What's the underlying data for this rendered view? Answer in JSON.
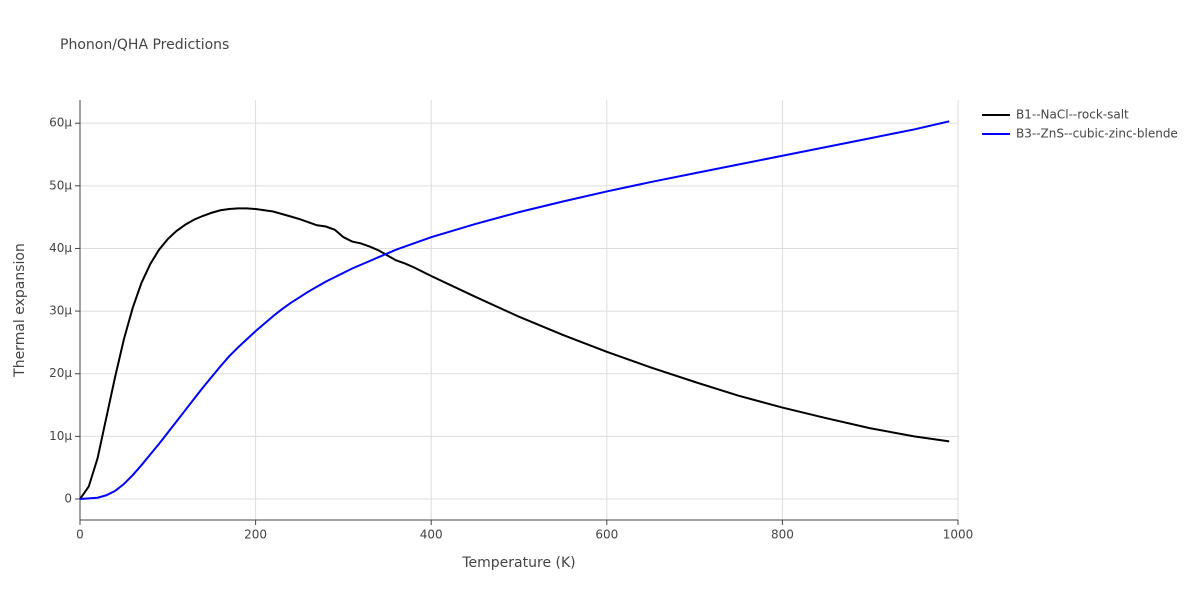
{
  "chart_data": {
    "type": "line",
    "title": "Phonon/QHA Predictions",
    "xlabel": "Temperature (K)",
    "ylabel": "Thermal expansion",
    "x": [
      0,
      10,
      20,
      30,
      40,
      50,
      60,
      70,
      80,
      90,
      100,
      110,
      120,
      130,
      140,
      150,
      160,
      170,
      180,
      190,
      200,
      210,
      220,
      230,
      240,
      250,
      260,
      270,
      280,
      290,
      300,
      310,
      320,
      330,
      340,
      350,
      360,
      370,
      380,
      400,
      450,
      500,
      550,
      600,
      650,
      700,
      750,
      800,
      850,
      900,
      950,
      990
    ],
    "series": [
      {
        "name": "B1--NaCl--rock-salt",
        "color": "#000000",
        "values": [
          0.0,
          2e-06,
          6.5e-06,
          1.3e-05,
          1.95e-05,
          2.55e-05,
          3.05e-05,
          3.45e-05,
          3.75e-05,
          3.98e-05,
          4.15e-05,
          4.28e-05,
          4.38e-05,
          4.46e-05,
          4.52e-05,
          4.57e-05,
          4.61e-05,
          4.63e-05,
          4.64e-05,
          4.64e-05,
          4.63e-05,
          4.61e-05,
          4.59e-05,
          4.55e-05,
          4.51e-05,
          4.47e-05,
          4.42e-05,
          4.37e-05,
          4.35e-05,
          4.3e-05,
          4.18e-05,
          4.11e-05,
          4.08e-05,
          4.03e-05,
          3.97e-05,
          3.89e-05,
          3.81e-05,
          3.76e-05,
          3.7e-05,
          3.56e-05,
          3.23e-05,
          2.91e-05,
          2.62e-05,
          2.35e-05,
          2.1e-05,
          1.87e-05,
          1.65e-05,
          1.46e-05,
          1.29e-05,
          1.13e-05,
          1e-05,
          9.2e-06
        ]
      },
      {
        "name": "B3--ZnS--cubic-zinc-blende",
        "color": "#0000ff",
        "values": [
          0.0,
          1e-07,
          2e-07,
          6e-07,
          1.3e-06,
          2.4e-06,
          3.8e-06,
          5.4e-06,
          7.1e-06,
          8.8e-06,
          1.06e-05,
          1.24e-05,
          1.42e-05,
          1.6e-05,
          1.78e-05,
          1.95e-05,
          2.12e-05,
          2.28e-05,
          2.42e-05,
          2.55e-05,
          2.68e-05,
          2.8e-05,
          2.92e-05,
          3.03e-05,
          3.13e-05,
          3.22e-05,
          3.31e-05,
          3.39e-05,
          3.47e-05,
          3.54e-05,
          3.61e-05,
          3.68e-05,
          3.74e-05,
          3.8e-05,
          3.86e-05,
          3.92e-05,
          3.98e-05,
          4.03e-05,
          4.08e-05,
          4.18e-05,
          4.39e-05,
          4.58e-05,
          4.75e-05,
          4.91e-05,
          5.06e-05,
          5.2e-05,
          5.34e-05,
          5.48e-05,
          5.62e-05,
          5.76e-05,
          5.9e-05,
          6.03e-05
        ]
      }
    ],
    "xlim": [
      0,
      1000
    ],
    "xticks": [
      0,
      200,
      400,
      600,
      800,
      1000
    ],
    "ylim": [
      -3.35e-06,
      6.37e-05
    ],
    "yticks": [
      0,
      {
        "value": 1e-05,
        "label": "10μ"
      },
      {
        "value": 2e-05,
        "label": "20μ"
      },
      {
        "value": 3e-05,
        "label": "30μ"
      },
      {
        "value": 4e-05,
        "label": "40μ"
      },
      {
        "value": 5e-05,
        "label": "50μ"
      },
      {
        "value": 6e-05,
        "label": "60μ"
      }
    ],
    "grid": true,
    "legend": "right"
  }
}
